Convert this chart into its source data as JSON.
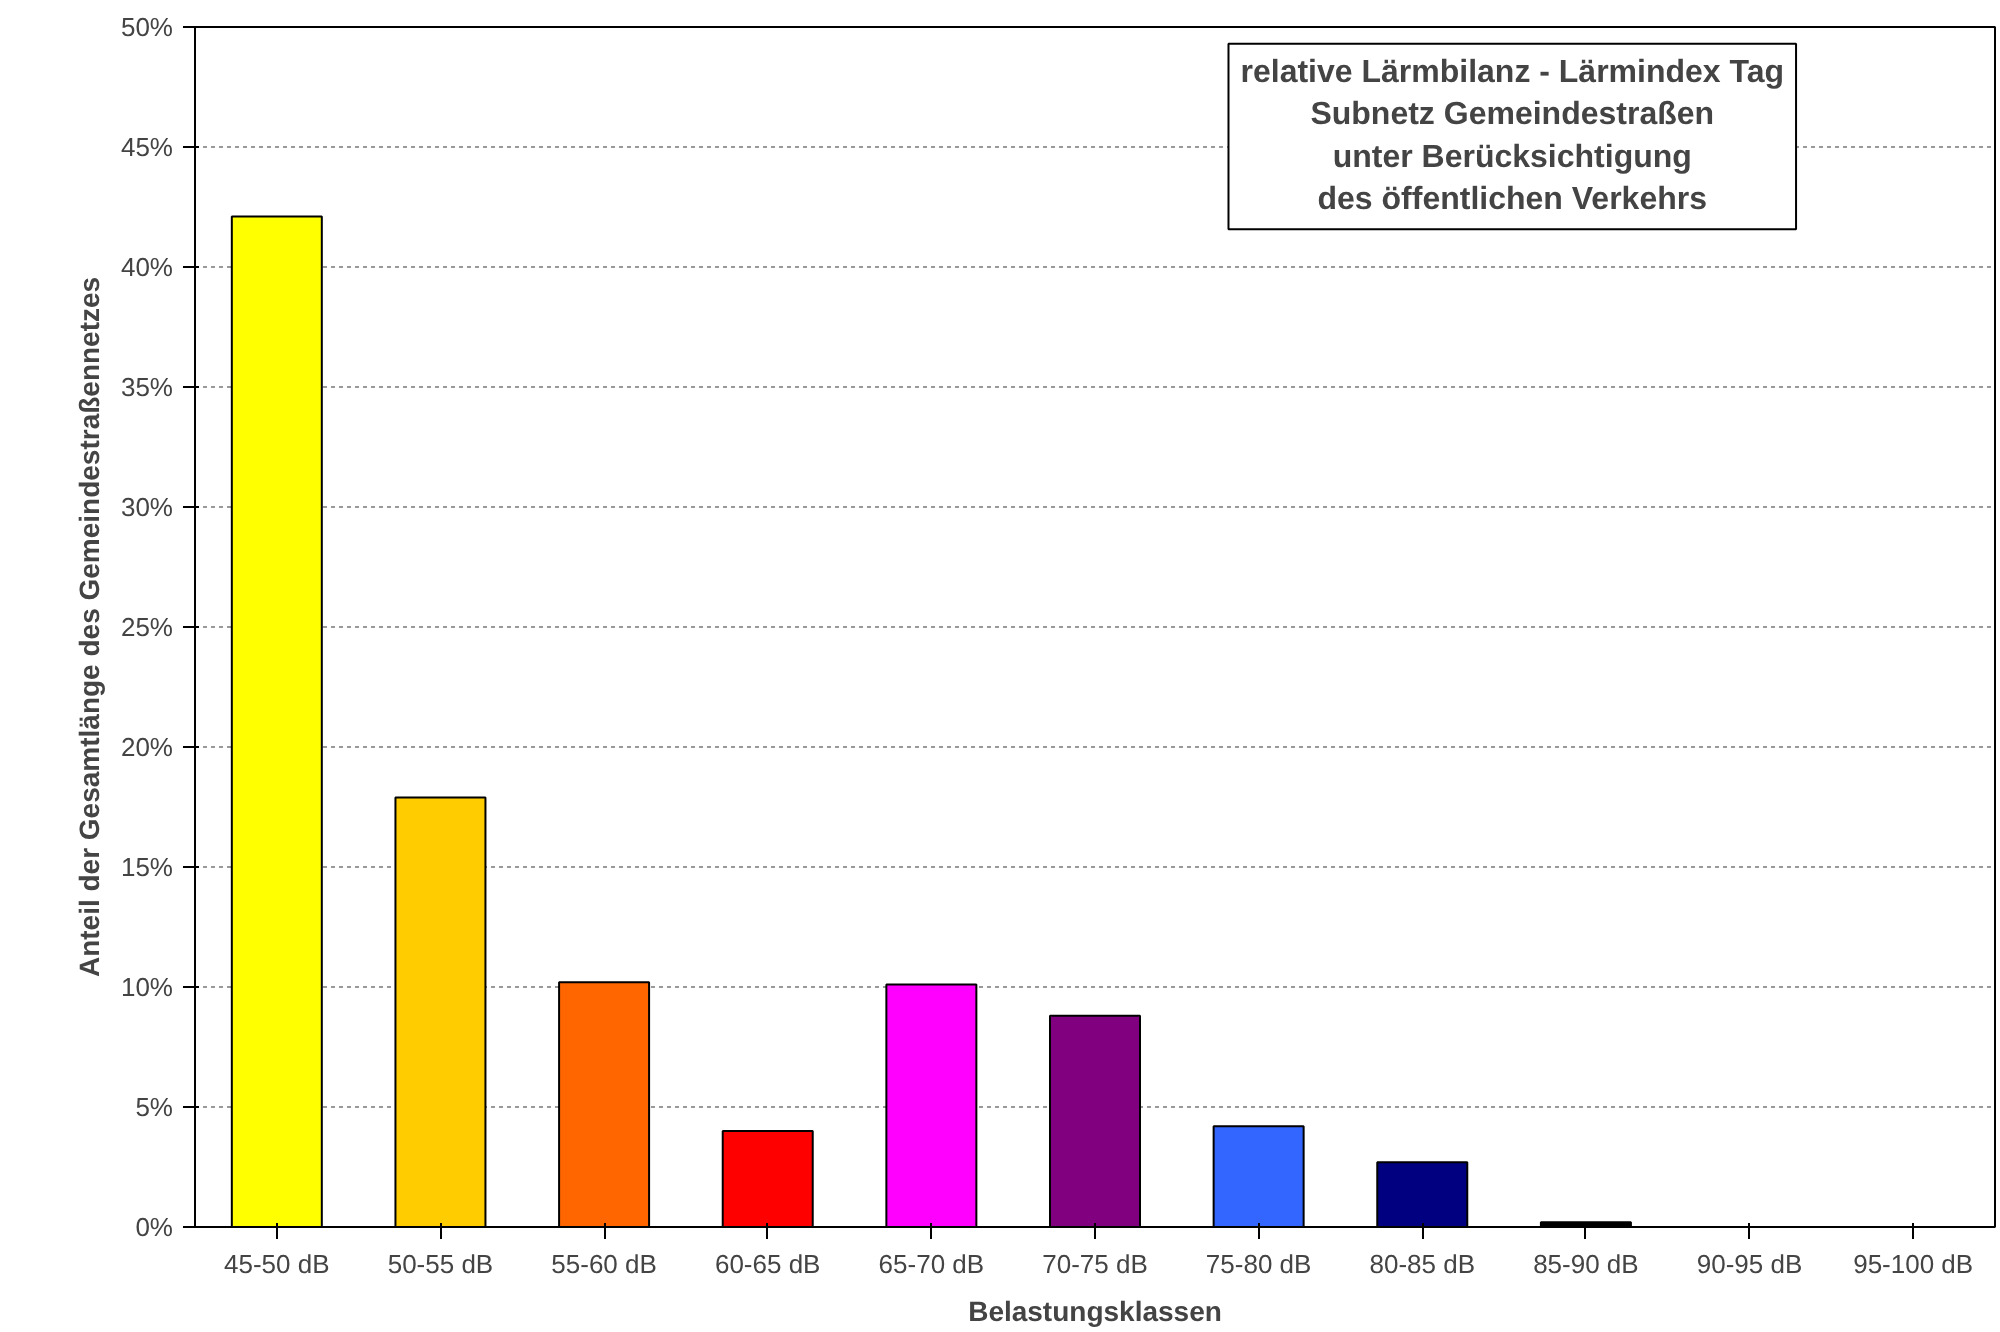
{
  "chart_data": {
    "type": "bar",
    "title": "relative Lärmbilanz - Lärmindex Tag\nSubnetz Gemeindestraßen\nunter Berücksichtigung\ndes öffentlichen Verkehrs",
    "xlabel": "Belastungsklassen",
    "ylabel": "Anteil der Gesamtlänge des Gemeindestraßennetzes",
    "categories": [
      "45-50 dB",
      "50-55 dB",
      "55-60 dB",
      "60-65 dB",
      "65-70 dB",
      "70-75 dB",
      "75-80 dB",
      "80-85 dB",
      "85-90 dB",
      "90-95 dB",
      "95-100 dB"
    ],
    "values": [
      42.1,
      17.9,
      10.2,
      4.0,
      10.1,
      8.8,
      4.2,
      2.7,
      0.2,
      0,
      0
    ],
    "colors": [
      "#ffff00",
      "#ffcc00",
      "#ff6600",
      "#ff0000",
      "#ff00ff",
      "#800080",
      "#3366ff",
      "#000080",
      "#000000",
      "#000000",
      "#000000"
    ],
    "ylim": [
      0,
      50
    ],
    "yticks": [
      {
        "value": 0,
        "label": "0%"
      },
      {
        "value": 5,
        "label": "5%"
      },
      {
        "value": 10,
        "label": "10%"
      },
      {
        "value": 15,
        "label": "15%"
      },
      {
        "value": 20,
        "label": "20%"
      },
      {
        "value": 25,
        "label": "25%"
      },
      {
        "value": 30,
        "label": "30%"
      },
      {
        "value": 35,
        "label": "35%"
      },
      {
        "value": 40,
        "label": "40%"
      },
      {
        "value": 45,
        "label": "45%"
      },
      {
        "value": 50,
        "label": "50%"
      }
    ],
    "grid": "y"
  }
}
